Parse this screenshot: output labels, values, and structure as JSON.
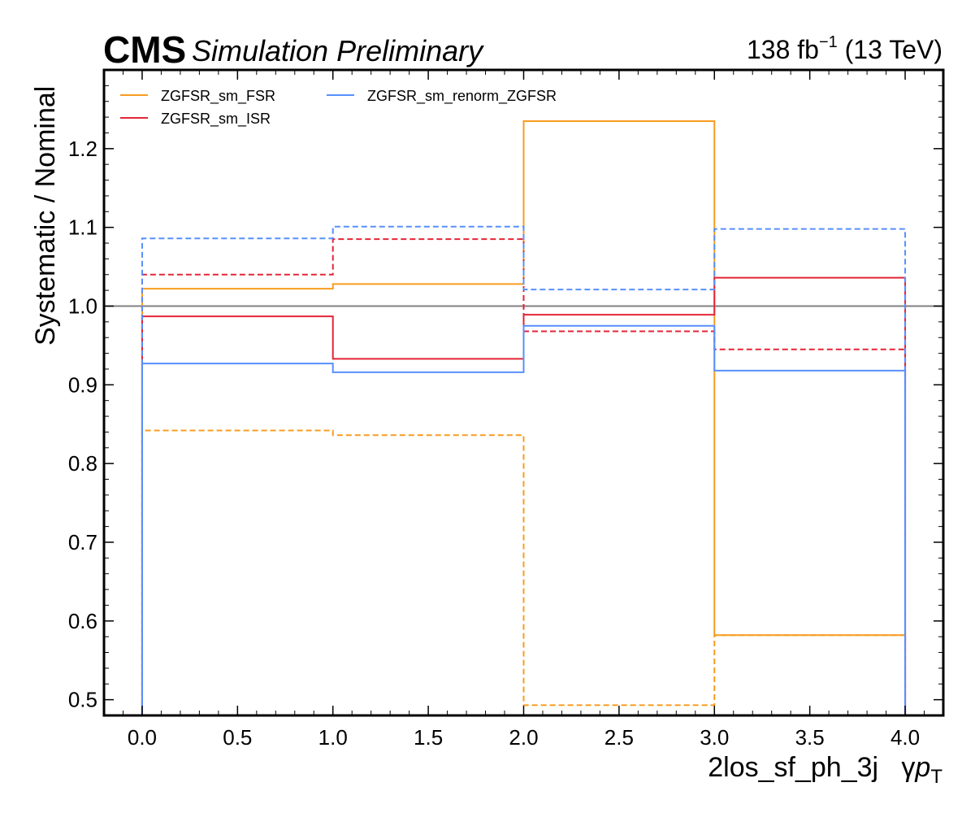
{
  "header": {
    "experiment": "CMS",
    "extra": "Simulation Preliminary",
    "lumi_value": "138 fb",
    "lumi_exp": "−1",
    "energy": "(13 TeV)"
  },
  "chart_data": {
    "type": "line",
    "drawstyle": "step",
    "x_edges": [
      0,
      1,
      2,
      3,
      4
    ],
    "xlim": [
      -0.2,
      4.2
    ],
    "ylim": [
      0.48,
      1.3
    ],
    "xticks": [
      0.0,
      0.5,
      1.0,
      1.5,
      2.0,
      2.5,
      3.0,
      3.5,
      4.0
    ],
    "xtick_labels": [
      "0.0",
      "0.5",
      "1.0",
      "1.5",
      "2.0",
      "2.5",
      "3.0",
      "3.5",
      "4.0"
    ],
    "yticks": [
      0.5,
      0.6,
      0.7,
      0.8,
      0.9,
      1.0,
      1.1,
      1.2
    ],
    "ytick_labels": [
      "0.5",
      "0.6",
      "0.7",
      "0.8",
      "0.9",
      "1.0",
      "1.1",
      "1.2"
    ],
    "xlabel_main": "2los_sf_ph_3j",
    "xlabel_var": "γ",
    "xlabel_p": "p",
    "xlabel_sub": "T",
    "ylabel": "Systematic / Nominal",
    "reference_line": 1.0,
    "legend_position": "top-left",
    "series": [
      {
        "name": "ZGFSR_sm_FSR",
        "color": "#f89c20",
        "up": [
          1.022,
          1.028,
          1.235,
          0.582
        ],
        "down": [
          0.842,
          0.836,
          0.493,
          0.582
        ]
      },
      {
        "name": "ZGFSR_sm_ISR",
        "color": "#e42536",
        "up": [
          0.987,
          0.933,
          0.989,
          1.036
        ],
        "down": [
          1.04,
          1.085,
          0.968,
          0.945
        ]
      },
      {
        "name": "ZGFSR_sm_renorm_ZGFSR",
        "color": "#5790fc",
        "up": [
          0.927,
          0.916,
          0.975,
          0.918
        ],
        "down": [
          1.086,
          1.101,
          1.021,
          1.098
        ]
      }
    ],
    "colors": {
      "reference": "#808080",
      "frame": "#000000"
    }
  }
}
